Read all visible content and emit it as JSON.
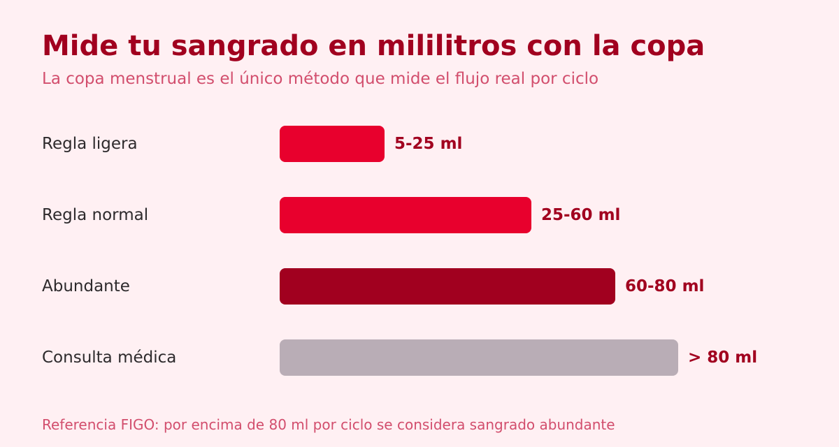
{
  "title": "Mide tu sangrado en mililitros con la copa",
  "subtitle": "La copa menstrual es el único método que mide el flujo real por ciclo",
  "footnote": "Referencia FIGO: por encima de 80 ml por ciclo se considera sangrado abundante",
  "colors": {
    "background": "#fff0f3",
    "title": "#a1001f",
    "subtitle": "#d24e6d",
    "category_label": "#2d2a2c",
    "value_label": "#a1001f"
  },
  "chart_data": {
    "type": "bar",
    "orientation": "horizontal",
    "categories": [
      "Regla ligera",
      "Regla normal",
      "Abundante",
      "Consulta médica"
    ],
    "values": [
      25,
      60,
      80,
      95
    ],
    "value_labels": [
      "5-25 ml",
      "25-60 ml",
      "60-80 ml",
      "> 80 ml"
    ],
    "bar_colors": [
      "#e8002d",
      "#e8002d",
      "#a1001f",
      "#b9adb6"
    ],
    "xlim": [
      0,
      100
    ],
    "grid": false,
    "legend": "none"
  }
}
